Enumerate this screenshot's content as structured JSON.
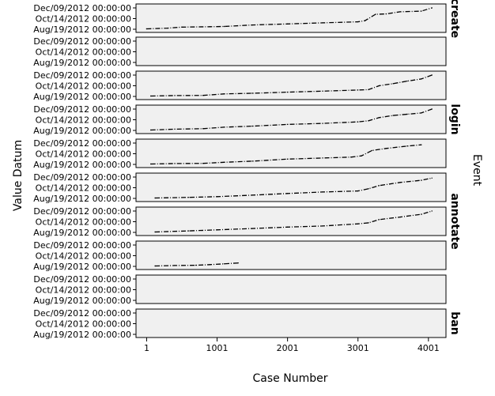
{
  "chart_data": {
    "type": "scatter",
    "xlabel": "Case Number",
    "ylabel": "Value Datum",
    "facet_title": "Event",
    "x_ticks": [
      1,
      1001,
      2001,
      3001,
      4001
    ],
    "xlim": [
      -150,
      4250
    ],
    "y_tick_labels": [
      "Dec/09/2012 00:00:00",
      "Oct/14/2012 00:00:00",
      "Aug/19/2012 00:00:00"
    ],
    "ylim": [
      "Aug/19/2012",
      "Dec/09/2012"
    ],
    "panels": [
      {
        "label": "create",
        "points": [
          [
            0,
            0.02
          ],
          [
            300,
            0.05
          ],
          [
            500,
            0.1
          ],
          [
            900,
            0.12
          ],
          [
            1100,
            0.13
          ],
          [
            1500,
            0.2
          ],
          [
            2000,
            0.25
          ],
          [
            2500,
            0.3
          ],
          [
            3000,
            0.35
          ],
          [
            3100,
            0.4
          ],
          [
            3250,
            0.7
          ],
          [
            3400,
            0.72
          ],
          [
            3600,
            0.82
          ],
          [
            3900,
            0.85
          ],
          [
            4050,
            1.0
          ]
        ]
      },
      {
        "label": "",
        "points": []
      },
      {
        "label": "",
        "points": [
          [
            60,
            0.02
          ],
          [
            400,
            0.04
          ],
          [
            800,
            0.05
          ],
          [
            1100,
            0.12
          ],
          [
            1500,
            0.15
          ],
          [
            2000,
            0.2
          ],
          [
            2500,
            0.25
          ],
          [
            3000,
            0.3
          ],
          [
            3150,
            0.32
          ],
          [
            3300,
            0.5
          ],
          [
            3500,
            0.6
          ],
          [
            3700,
            0.72
          ],
          [
            3900,
            0.82
          ],
          [
            4050,
            1.0
          ]
        ]
      },
      {
        "label": "login",
        "points": [
          [
            60,
            0.02
          ],
          [
            400,
            0.06
          ],
          [
            800,
            0.08
          ],
          [
            1100,
            0.15
          ],
          [
            1500,
            0.2
          ],
          [
            2000,
            0.28
          ],
          [
            2500,
            0.33
          ],
          [
            3000,
            0.4
          ],
          [
            3150,
            0.45
          ],
          [
            3300,
            0.6
          ],
          [
            3500,
            0.7
          ],
          [
            3700,
            0.76
          ],
          [
            3900,
            0.82
          ],
          [
            4050,
            1.0
          ]
        ]
      },
      {
        "label": "",
        "points": [
          [
            60,
            0.02
          ],
          [
            400,
            0.04
          ],
          [
            800,
            0.05
          ],
          [
            1100,
            0.1
          ],
          [
            1500,
            0.15
          ],
          [
            2000,
            0.25
          ],
          [
            2500,
            0.3
          ],
          [
            2900,
            0.34
          ],
          [
            3050,
            0.4
          ],
          [
            3200,
            0.65
          ],
          [
            3400,
            0.75
          ],
          [
            3700,
            0.86
          ],
          [
            3900,
            0.92
          ]
        ]
      },
      {
        "label": "",
        "points": [
          [
            120,
            0.02
          ],
          [
            600,
            0.05
          ],
          [
            1000,
            0.08
          ],
          [
            1500,
            0.15
          ],
          [
            2000,
            0.23
          ],
          [
            2500,
            0.3
          ],
          [
            3000,
            0.35
          ],
          [
            3150,
            0.45
          ],
          [
            3300,
            0.6
          ],
          [
            3600,
            0.75
          ],
          [
            3900,
            0.85
          ],
          [
            4050,
            0.95
          ]
        ]
      },
      {
        "label": "annotate",
        "points": [
          [
            120,
            0.02
          ],
          [
            600,
            0.07
          ],
          [
            1000,
            0.12
          ],
          [
            1500,
            0.18
          ],
          [
            2000,
            0.25
          ],
          [
            2500,
            0.3
          ],
          [
            3000,
            0.4
          ],
          [
            3150,
            0.45
          ],
          [
            3300,
            0.6
          ],
          [
            3600,
            0.72
          ],
          [
            3900,
            0.85
          ],
          [
            4050,
            1.0
          ]
        ]
      },
      {
        "label": "",
        "points": [
          [
            120,
            0.02
          ],
          [
            400,
            0.04
          ],
          [
            700,
            0.05
          ],
          [
            900,
            0.08
          ],
          [
            1100,
            0.12
          ],
          [
            1300,
            0.16
          ]
        ]
      },
      {
        "label": "",
        "points": []
      },
      {
        "label": "ban",
        "points": []
      }
    ]
  }
}
